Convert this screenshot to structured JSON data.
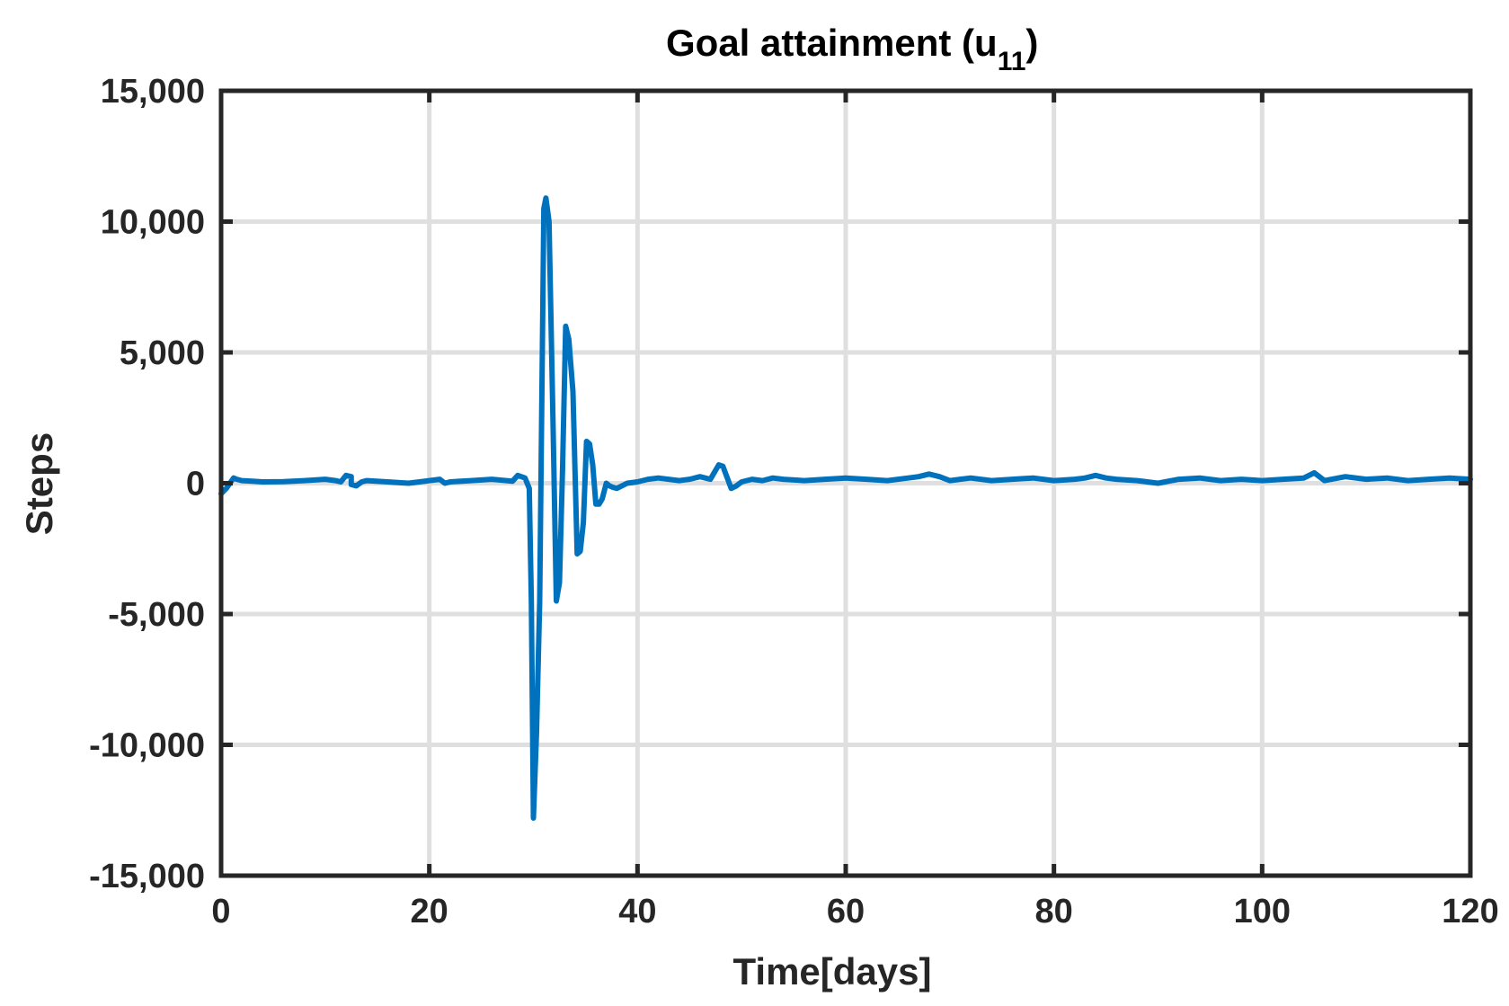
{
  "chart_data": {
    "type": "line",
    "title": "Goal attainment (u",
    "title_subscript": "11",
    "title_close": ")",
    "xlabel": "Time[days]",
    "ylabel": "Steps",
    "xlim": [
      0,
      120
    ],
    "ylim": [
      -15000,
      15000
    ],
    "x_ticks": [
      0,
      20,
      40,
      60,
      80,
      100,
      120
    ],
    "x_tick_labels": [
      "0",
      "20",
      "40",
      "60",
      "80",
      "100",
      "120"
    ],
    "y_ticks": [
      15000,
      10000,
      5000,
      0,
      -5000,
      -10000,
      -15000
    ],
    "y_tick_labels": [
      "15,000",
      "10,000",
      "5,000",
      "0",
      "-5,000",
      "-10,000",
      "-15,000"
    ],
    "grid": true,
    "colors": {
      "line": "#0072bd",
      "grid": "#dfdfdf",
      "axes": "#262626"
    },
    "series": [
      {
        "x": [
          0,
          0.5,
          1.2,
          1.5,
          2,
          3,
          4,
          6,
          8,
          10,
          11,
          11.5,
          12,
          12.5,
          12.5,
          13,
          13.5,
          14,
          16,
          18,
          20,
          21,
          21.5,
          22,
          24,
          26,
          28,
          28.5,
          29.2,
          29.6,
          29.8,
          30.0,
          30.3,
          30.6,
          31.0,
          31.2,
          31.5,
          31.9,
          32.2,
          32.5,
          32.8,
          33.1,
          33.4,
          33.8,
          34.2,
          34.5,
          34.8,
          35.1,
          35.4,
          35.7,
          36.0,
          36.3,
          36.6,
          37.0,
          37.3,
          37.6,
          38.0,
          39,
          40,
          41,
          42,
          44,
          45,
          46,
          47,
          47.8,
          48.2,
          49,
          49.5,
          50,
          51,
          52,
          53,
          54,
          56,
          58,
          60,
          62,
          64,
          66,
          67,
          68,
          69,
          70,
          71,
          72,
          74,
          76,
          78,
          80,
          82,
          83,
          84,
          85,
          86,
          88,
          90,
          92,
          94,
          96,
          98,
          100,
          102,
          104,
          105,
          106,
          108,
          110,
          112,
          114,
          116,
          118,
          120
        ],
        "y": [
          -400,
          -200,
          200,
          150,
          100,
          80,
          50,
          60,
          100,
          150,
          100,
          50,
          300,
          250,
          -50,
          -100,
          50,
          100,
          50,
          0,
          100,
          150,
          0,
          50,
          100,
          150,
          80,
          300,
          200,
          -200,
          -4500,
          -12800,
          -9500,
          -4500,
          10500,
          10900,
          10000,
          2000,
          -4500,
          -3800,
          500,
          6000,
          5500,
          3500,
          -2700,
          -2600,
          -1500,
          1600,
          1500,
          700,
          -800,
          -800,
          -600,
          0,
          -100,
          -150,
          -200,
          0,
          50,
          150,
          200,
          100,
          150,
          250,
          150,
          700,
          650,
          -200,
          -100,
          50,
          150,
          100,
          200,
          150,
          100,
          150,
          200,
          150,
          100,
          200,
          250,
          350,
          250,
          100,
          150,
          200,
          100,
          150,
          200,
          100,
          150,
          200,
          300,
          200,
          150,
          100,
          0,
          150,
          200,
          100,
          150,
          100,
          150,
          200,
          400,
          100,
          250,
          150,
          200,
          100,
          150,
          200,
          150
        ]
      }
    ]
  }
}
